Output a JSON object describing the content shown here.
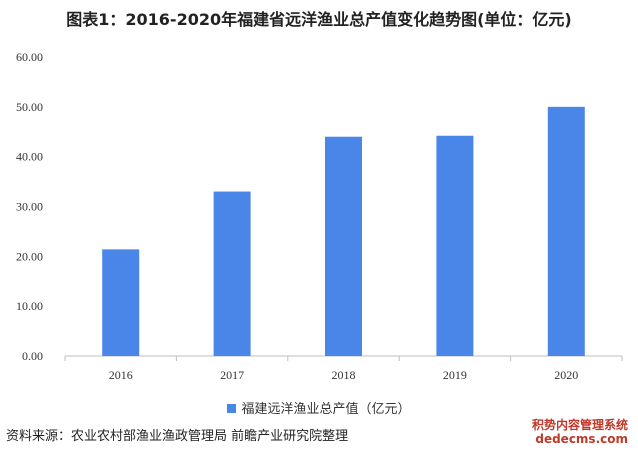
{
  "title": "图表1：2016-2020年福建省远洋渔业总产值变化趋势图(单位：亿元)",
  "source": "资料来源：农业农村部渔业渔政管理局 前瞻产业研究院整理",
  "corner_mark": {
    "line1": "积势内容管理系统",
    "line2": "dedecms.com"
  },
  "colors": {
    "bar": "#4A86E8",
    "axis": "#bfbfbf"
  },
  "chart_data": {
    "type": "bar",
    "categories": [
      "2016",
      "2017",
      "2018",
      "2019",
      "2020"
    ],
    "series": [
      {
        "name": "福建远洋渔业总产值（亿元）",
        "values": [
          21.4,
          33.0,
          44.0,
          44.2,
          50.0
        ]
      }
    ],
    "yticks": [
      "0.00",
      "10.00",
      "20.00",
      "30.00",
      "40.00",
      "50.00",
      "60.00"
    ],
    "ylim": [
      0,
      60
    ],
    "grid": false,
    "legend_position": "bottom"
  }
}
